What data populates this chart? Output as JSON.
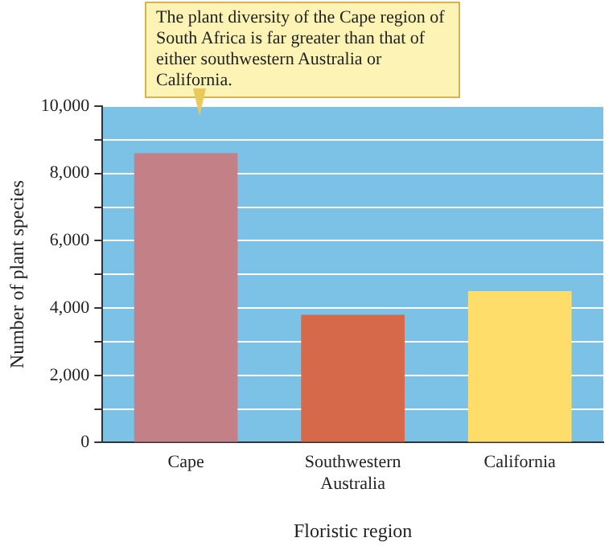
{
  "chart_data": {
    "type": "bar",
    "xlabel": "Floristic region",
    "ylabel": "Number of plant species",
    "categories": [
      "Cape",
      "Southwestern Australia",
      "California"
    ],
    "values": [
      8600,
      3800,
      4500
    ],
    "colors": [
      "#c38086",
      "#d5694a",
      "#fedd6a"
    ],
    "ylim": [
      0,
      10000
    ],
    "yticks": [
      0,
      {
        "value": 1000,
        "label": null
      },
      {
        "value": 2000,
        "label": "2,000"
      },
      {
        "value": 3000,
        "label": null
      },
      {
        "value": 4000,
        "label": "4,000"
      },
      {
        "value": 5000,
        "label": null
      },
      {
        "value": 6000,
        "label": "6,000"
      },
      {
        "value": 7000,
        "label": null
      },
      {
        "value": 8000,
        "label": "8,000"
      },
      {
        "value": 9000,
        "label": null
      },
      {
        "value": 10000,
        "label": "10,000"
      }
    ],
    "grid": "y",
    "annotations": [
      "The plant diversity of the Cape region of South Africa is far greater than that of either southwestern Australia or California."
    ]
  }
}
